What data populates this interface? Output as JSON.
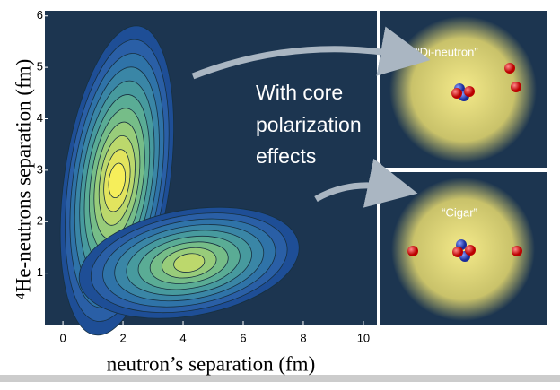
{
  "chart_data": {
    "type": "contour",
    "xlabel": "neutron’s separation (fm)",
    "ylabel": "⁴He-neutrons separation (fm)",
    "xlim": [
      -0.6,
      10.45
    ],
    "ylim": [
      0,
      6.1
    ],
    "xticks": [
      0,
      2,
      4,
      6,
      8,
      10
    ],
    "yticks": [
      1,
      2,
      3,
      4,
      5,
      6
    ],
    "peaks": {
      "x": [
        1.8,
        4.2
      ],
      "y": [
        2.8,
        1.2
      ]
    },
    "annotation": [
      "With core",
      "polarization",
      "effects"
    ],
    "insets": [
      "“Di-neutron”",
      "“Cigar”"
    ]
  }
}
